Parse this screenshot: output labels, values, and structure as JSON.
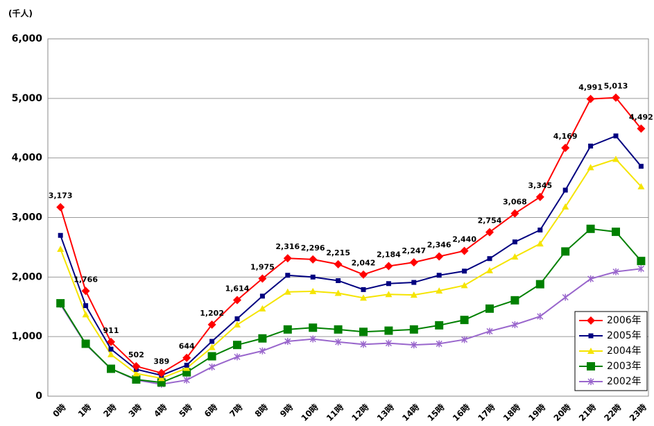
{
  "chart_data": {
    "type": "line",
    "unit_label": "(千人)",
    "categories": [
      "0時",
      "1時",
      "2時",
      "3時",
      "4時",
      "5時",
      "6時",
      "7時",
      "8時",
      "9時",
      "10時",
      "11時",
      "12時",
      "13時",
      "14時",
      "15時",
      "16時",
      "17時",
      "18時",
      "19時",
      "20時",
      "21時",
      "22時",
      "23時"
    ],
    "series": [
      {
        "name": "2006年",
        "color": "#ff0000",
        "marker": "diamond",
        "values": [
          3173,
          1766,
          911,
          502,
          389,
          644,
          1202,
          1614,
          1975,
          2316,
          2296,
          2215,
          2042,
          2184,
          2247,
          2346,
          2440,
          2754,
          3068,
          3345,
          4169,
          4991,
          5013,
          4492
        ],
        "value_labels": [
          "3,173",
          "1,766",
          "911",
          "502",
          "389",
          "644",
          "1,202",
          "1,614",
          "1,975",
          "2,316",
          "2,296",
          "2,215",
          "2,042",
          "2,184",
          "2,247",
          "2,346",
          "2,440",
          "2,754",
          "3,068",
          "3,345",
          "4,169",
          "4,991",
          "5,013",
          "4,492"
        ]
      },
      {
        "name": "2005年",
        "color": "#000080",
        "marker": "square",
        "values": [
          2700,
          1520,
          790,
          450,
          350,
          520,
          920,
          1300,
          1680,
          2030,
          2000,
          1940,
          1790,
          1890,
          1910,
          2030,
          2100,
          2310,
          2590,
          2790,
          3460,
          4200,
          4370,
          3860
        ]
      },
      {
        "name": "2004年",
        "color": "#f5e400",
        "marker": "triangle",
        "values": [
          2470,
          1370,
          700,
          380,
          300,
          470,
          820,
          1200,
          1470,
          1750,
          1760,
          1730,
          1650,
          1710,
          1700,
          1770,
          1860,
          2110,
          2340,
          2560,
          3180,
          3840,
          3980,
          3520
        ]
      },
      {
        "name": "2003年",
        "color": "#008000",
        "marker": "bigsquare",
        "values": [
          1560,
          880,
          460,
          280,
          230,
          400,
          670,
          860,
          970,
          1120,
          1150,
          1120,
          1080,
          1100,
          1120,
          1190,
          1280,
          1470,
          1610,
          1880,
          2430,
          2810,
          2760,
          2270
        ]
      },
      {
        "name": "2002年",
        "color": "#9966cc",
        "marker": "x",
        "values": [
          1540,
          870,
          460,
          270,
          200,
          270,
          490,
          660,
          760,
          920,
          960,
          910,
          870,
          890,
          860,
          880,
          950,
          1090,
          1200,
          1340,
          1660,
          1970,
          2090,
          2140
        ]
      }
    ],
    "ylim": [
      0,
      6000
    ],
    "yticks": [
      0,
      {
        "value": 1000,
        "label": "1,000"
      },
      {
        "value": 2000,
        "label": "2,000"
      },
      {
        "value": 3000,
        "label": "3,000"
      },
      {
        "value": 4000,
        "label": "4,000"
      },
      {
        "value": 5000,
        "label": "5,000"
      },
      {
        "value": 6000,
        "label": "6,000"
      }
    ],
    "grid": true,
    "legend": "bottom-right"
  }
}
